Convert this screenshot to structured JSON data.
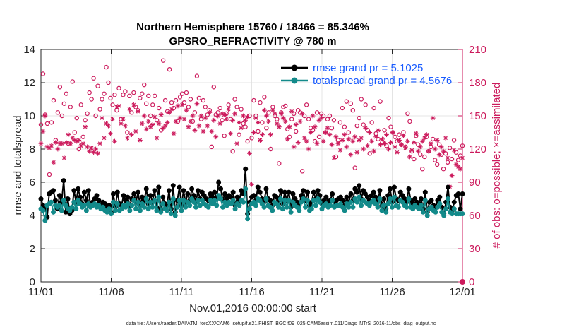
{
  "chart_data": {
    "type": "line",
    "title": "Northern Hemisphere 15760 / 18466 = 85.346%",
    "subtitle": "GPSRO_REFRACTIVITY @ 780 m",
    "xlabel": "Nov.01,2016 00:00:00 start",
    "ylabel": "rmse and totalspread",
    "ylabel_right": "# of obs: o=possible; ×=assimilated",
    "x_ticks": [
      "11/01",
      "11/06",
      "11/11",
      "11/16",
      "11/21",
      "11/26",
      "12/01"
    ],
    "y_ticks": [
      "0",
      "2",
      "4",
      "6",
      "8",
      "10",
      "12",
      "14"
    ],
    "y_right_ticks": [
      "0",
      "30",
      "60",
      "90",
      "120",
      "150",
      "180",
      "210"
    ],
    "xlim": [
      0,
      30
    ],
    "ylim": [
      0,
      14
    ],
    "ylim_right": [
      0,
      210
    ],
    "grid": true,
    "legend_position": "top-right",
    "footnote": "data file: /Users/raeder/DAI/ATM_forcXX/CAM6_setup/f.e21.FHIST_BGC.f09_025.CAM6assim.011/Diags_NTrS_2016-11/obs_diag_output.nc",
    "series": [
      {
        "name": "rmse grand pr = 5.1025",
        "color": "#000000",
        "axis": "left",
        "values": [
          5.0,
          4.6,
          4.5,
          3.9,
          5.3,
          5.4,
          5.5,
          4.9,
          4.4,
          5.2,
          4.8,
          6.1,
          4.2,
          5.0,
          4.1,
          4.3,
          5.5,
          4.8,
          5.6,
          5.1,
          4.7,
          5.4,
          4.9,
          5.5,
          4.6,
          4.8,
          5.0,
          5.2,
          4.9,
          4.6,
          4.8,
          4.7,
          4.5,
          4.6,
          4.2,
          5.3,
          4.5,
          5.4,
          4.7,
          4.6,
          5.2,
          4.9,
          5.1,
          4.6,
          5.0,
          5.3,
          4.8,
          5.4,
          4.6,
          5.1,
          4.9,
          5.6,
          4.7,
          5.2,
          4.8,
          5.5,
          4.5,
          5.7,
          4.4,
          5.1,
          4.7,
          4.6,
          5.5,
          4.4,
          5.8,
          4.2,
          4.9,
          5.7,
          4.6,
          5.5,
          4.8,
          5.3,
          4.9,
          5.6,
          5.2,
          4.8,
          5.5,
          5.0,
          5.4,
          5.2,
          5.0,
          4.9,
          5.3,
          5.1,
          5.4,
          5.0,
          6.0,
          5.6,
          4.9,
          5.3,
          5.0,
          5.2,
          5.1,
          5.4,
          4.6,
          5.1,
          4.9,
          5.5,
          5.3,
          6.8,
          4.1,
          4.8,
          5.1,
          5.2,
          4.9,
          5.7,
          5.4,
          5.0,
          4.8,
          5.6,
          5.0,
          4.9,
          4.6,
          5.2,
          5.1,
          4.9,
          5.5,
          4.7,
          5.4,
          4.9,
          5.4,
          4.5,
          5.3,
          5.0,
          4.8,
          4.6,
          5.2,
          5.5,
          4.9,
          5.4,
          4.6,
          4.8,
          5.4,
          5.0,
          5.5,
          5.2,
          4.7,
          4.9,
          5.1,
          4.8,
          4.9,
          5.3,
          4.8,
          4.9,
          5.0,
          5.1,
          4.9,
          4.6,
          5.1,
          4.8,
          5.3,
          4.9,
          5.6,
          5.4,
          5.8,
          5.0,
          5.5,
          5.3,
          5.1,
          4.9,
          5.2,
          5.4,
          5.1,
          4.8,
          5.5,
          4.6,
          5.0,
          4.4,
          5.2,
          5.6,
          4.8,
          5.7,
          5.0,
          4.9,
          5.4,
          5.2,
          5.0,
          4.8,
          5.6,
          4.9,
          4.7,
          5.0,
          4.8,
          4.7,
          5.0,
          4.4,
          5.4,
          4.2,
          4.8,
          4.9,
          4.6,
          4.5,
          4.9,
          5.1,
          4.5,
          4.1,
          4.8,
          5.7,
          4.5,
          4.3,
          4.8,
          5.2,
          5.3,
          4.4,
          5.3
        ]
      },
      {
        "name": "totalspread grand pr = 4.5676",
        "color": "#138a8a",
        "axis": "left",
        "values": [
          4.4,
          4.3,
          3.7,
          4.6,
          4.7,
          4.8,
          4.2,
          4.6,
          4.5,
          4.6,
          4.3,
          4.9,
          4.6,
          4.4,
          4.3,
          4.5,
          4.8,
          4.4,
          4.9,
          4.7,
          4.5,
          4.6,
          4.3,
          4.7,
          4.5,
          4.6,
          4.7,
          4.5,
          4.6,
          4.4,
          4.5,
          4.3,
          4.2,
          4.4,
          4.1,
          4.8,
          4.3,
          4.7,
          4.3,
          4.4,
          4.6,
          4.5,
          4.7,
          4.3,
          4.6,
          4.9,
          4.4,
          4.8,
          4.3,
          4.7,
          4.5,
          5.0,
          4.4,
          4.8,
          4.5,
          4.9,
          4.3,
          5.1,
          4.2,
          4.7,
          4.4,
          4.3,
          4.8,
          4.1,
          5.0,
          4.0,
          4.5,
          4.9,
          4.3,
          4.9,
          4.5,
          4.8,
          4.6,
          5.0,
          4.8,
          4.5,
          4.9,
          4.6,
          4.9,
          4.7,
          4.6,
          4.5,
          4.9,
          4.7,
          4.9,
          4.6,
          5.2,
          5.0,
          4.5,
          4.8,
          4.6,
          4.8,
          4.7,
          4.9,
          4.4,
          4.7,
          4.6,
          4.9,
          4.8,
          5.6,
          3.8,
          4.4,
          4.7,
          4.8,
          4.6,
          5.0,
          4.9,
          4.7,
          4.5,
          5.0,
          4.6,
          4.5,
          4.3,
          4.8,
          4.7,
          4.5,
          5.0,
          4.4,
          4.9,
          4.5,
          4.9,
          4.2,
          4.8,
          4.6,
          4.5,
          4.3,
          4.8,
          5.0,
          4.5,
          4.9,
          4.3,
          4.4,
          4.9,
          4.6,
          5.0,
          4.8,
          4.4,
          4.6,
          4.7,
          4.5,
          4.6,
          4.9,
          4.5,
          4.6,
          4.6,
          4.7,
          4.5,
          4.3,
          4.7,
          4.5,
          4.8,
          4.5,
          5.0,
          4.8,
          5.1,
          4.6,
          4.9,
          4.8,
          4.7,
          4.6,
          4.8,
          4.9,
          4.7,
          4.5,
          5.0,
          4.3,
          4.6,
          4.2,
          4.7,
          5.0,
          4.5,
          5.1,
          4.6,
          4.5,
          4.9,
          4.8,
          4.6,
          4.5,
          5.0,
          4.5,
          4.4,
          4.6,
          4.5,
          4.4,
          4.6,
          4.2,
          4.9,
          4.0,
          4.4,
          4.5,
          4.3,
          4.2,
          4.5,
          4.7,
          4.2,
          4.0,
          4.4,
          5.0,
          4.2,
          4.1,
          4.4,
          4.1,
          4.1,
          4.1,
          4.1
        ]
      },
      {
        "name": "possible",
        "marker": "o",
        "color": "#cc1a5c",
        "axis": "right",
        "values": [
          142,
          188,
          151,
          143,
          97,
          144,
          164,
          128,
          153,
          176,
          150,
          161,
          170,
          125,
          158,
          181,
          135,
          148,
          120,
          160,
          131,
          146,
          152,
          171,
          165,
          184,
          150,
          177,
          156,
          165,
          170,
          194,
          180,
          166,
          160,
          169,
          155,
          175,
          147,
          169,
          172,
          135,
          168,
          153,
          171,
          158,
          155,
          166,
          170,
          178,
          161,
          168,
          150,
          160,
          168,
          146,
          157,
          137,
          200,
          164,
          154,
          192,
          162,
          157,
          164,
          145,
          167,
          170,
          162,
          171,
          158,
          165,
          145,
          153,
          186,
          166,
          147,
          164,
          158,
          151,
          155,
          122,
          176,
          151,
          153,
          157,
          146,
          132,
          152,
          160,
          147,
          118,
          165,
          158,
          133,
          156,
          143,
          140,
          127,
          150,
          130,
          164,
          150,
          136,
          162,
          144,
          167,
          139,
          153,
          120,
          158,
          150,
          147,
          107,
          153,
          158,
          159,
          138,
          131,
          147,
          152,
          136,
          155,
          153,
          100,
          150,
          160,
          147,
          139,
          137,
          127,
          153,
          131,
          152,
          150,
          135,
          147,
          150,
          139,
          146,
          113,
          128,
          144,
          157,
          140,
          163,
          135,
          161,
          155,
          103,
          141,
          148,
          165,
          142,
          160,
          137,
          116,
          144,
          157,
          134,
          129,
          163,
          126,
          137,
          123,
          148,
          140,
          135,
          131,
          127,
          133,
          124,
          135,
          122,
          152,
          145,
          118,
          111,
          132,
          124,
          115,
          102,
          113,
          131,
          118,
          122,
          129,
          110,
          106,
          124,
          115,
          102,
          116,
          108,
          121,
          111,
          128,
          117,
          110,
          114,
          123
        ]
      },
      {
        "name": "assimilated",
        "marker": "*",
        "color": "#cc1a5c",
        "axis": "right",
        "values": [
          125,
          136,
          150,
          122,
          121,
          123,
          108,
          126,
          120,
          125,
          125,
          112,
          126,
          133,
          125,
          130,
          128,
          127,
          128,
          123,
          125,
          140,
          122,
          118,
          121,
          117,
          120,
          116,
          125,
          148,
          130,
          143,
          141,
          134,
          147,
          127,
          158,
          159,
          143,
          147,
          141,
          130,
          156,
          133,
          160,
          136,
          154,
          128,
          143,
          150,
          138,
          145,
          140,
          142,
          149,
          130,
          143,
          151,
          139,
          141,
          144,
          153,
          156,
          134,
          145,
          159,
          148,
          160,
          147,
          155,
          140,
          145,
          150,
          137,
          161,
          141,
          150,
          136,
          148,
          141,
          153,
          136,
          146,
          131,
          150,
          143,
          152,
          151,
          147,
          156,
          134,
          146,
          152,
          125,
          144,
          139,
          150,
          146,
          149,
          116,
          88,
          135,
          148,
          144,
          128,
          133,
          155,
          150,
          145,
          133,
          155,
          152,
          143,
          140,
          152,
          148,
          145,
          129,
          140,
          154,
          122,
          142,
          126,
          145,
          152,
          130,
          127,
          120,
          135,
          150,
          140,
          125,
          146,
          148,
          127,
          135,
          139,
          133,
          124,
          112,
          131,
          125,
          119,
          128,
          133,
          122,
          129,
          115,
          127,
          131,
          117,
          128,
          130,
          120,
          139,
          123,
          135,
          127,
          118,
          131,
          137,
          124,
          129,
          125,
          133,
          120,
          126,
          135,
          122,
          117,
          128,
          124,
          132,
          121,
          127,
          113,
          119,
          126,
          134,
          118,
          122,
          127,
          130,
          133,
          118,
          125,
          148,
          120,
          128,
          115,
          122,
          118,
          130,
          112,
          86,
          96,
          119,
          106,
          104,
          102,
          112
        ]
      }
    ]
  }
}
